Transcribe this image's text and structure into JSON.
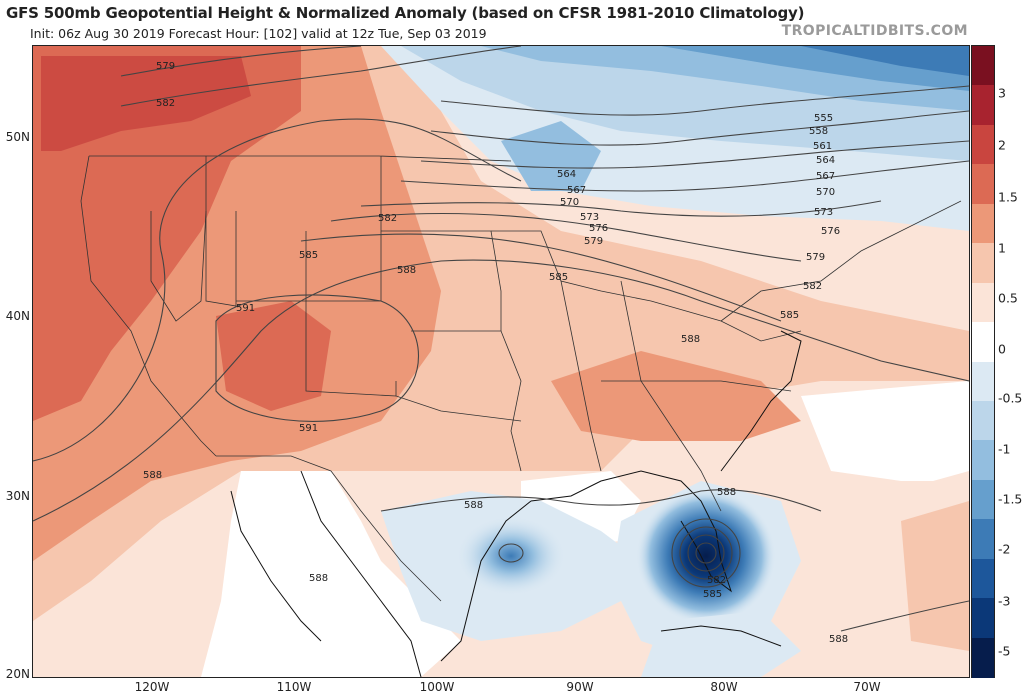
{
  "header": {
    "title": "GFS 500mb Geopotential Height & Normalized Anomaly (based on CFSR 1981-2010 Climatology)",
    "subtitle": "Init: 06z Aug 30 2019   Forecast Hour: [102]   valid at 12z Tue, Sep 03 2019",
    "credit": "TROPICALTIDBITS.COM"
  },
  "axes": {
    "latitude_labels": [
      "50N",
      "40N",
      "30N",
      "20N"
    ],
    "longitude_labels": [
      "120W",
      "110W",
      "100W",
      "90W",
      "80W",
      "70W"
    ]
  },
  "colorbar": {
    "labels": [
      "3",
      "2",
      "1.5",
      "1",
      "0.5",
      "0",
      "-0.5",
      "-1",
      "-1.5",
      "-2",
      "-3",
      "-5"
    ],
    "colors": [
      "#7a1020",
      "#a8232f",
      "#c9453f",
      "#dc6a54",
      "#ec9878",
      "#f6c6ae",
      "#fbe4d8",
      "#ffffff",
      "#dce9f3",
      "#bcd6ea",
      "#93bedf",
      "#669fcd",
      "#3d7bb6",
      "#1d579b",
      "#0b3878",
      "#061d4c"
    ]
  },
  "contours": {
    "labels": [
      "579",
      "582",
      "585",
      "588",
      "591",
      "555",
      "558",
      "561",
      "564",
      "567",
      "570",
      "573",
      "576"
    ],
    "cyclone_labels": [
      "582",
      "585",
      "588"
    ]
  }
}
